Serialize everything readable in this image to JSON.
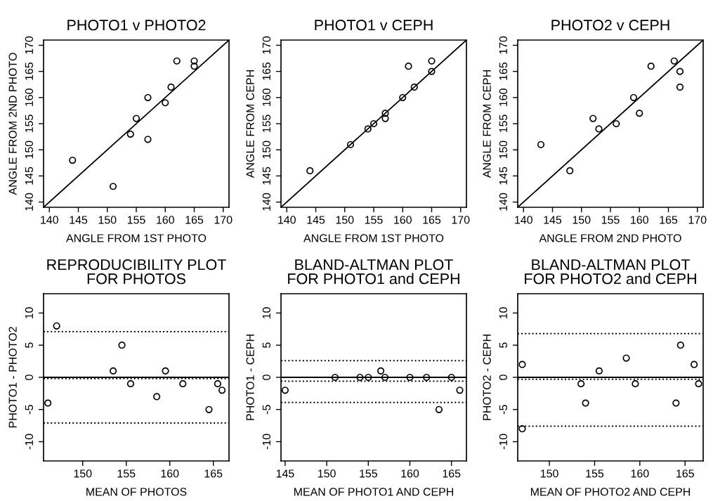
{
  "chart_data": [
    {
      "type": "scatter",
      "title": "PHOTO1 v PHOTO2",
      "xlabel": "ANGLE FROM 1ST PHOTO",
      "ylabel": "ANGLE FROM 2ND PHOTO",
      "xlim": [
        139,
        171
      ],
      "ylim": [
        139,
        171
      ],
      "xticks": [
        140,
        145,
        150,
        155,
        160,
        165,
        170
      ],
      "yticks": [
        140,
        145,
        150,
        155,
        160,
        165,
        170
      ],
      "series": [
        {
          "marker": "circle",
          "color": "#000000",
          "x": [
            144,
            151,
            154,
            155,
            157,
            157,
            160,
            161,
            162,
            165,
            165
          ],
          "values": [
            148,
            143,
            153,
            156,
            160,
            152,
            159,
            162,
            167,
            167,
            166
          ]
        },
        {
          "type": "line",
          "marker": "none",
          "color": "#000000",
          "x": [
            139,
            171
          ],
          "values": [
            139,
            171
          ]
        }
      ]
    },
    {
      "type": "scatter",
      "title": "PHOTO1 v CEPH",
      "xlabel": "ANGLE FROM 1ST PHOTO",
      "ylabel": "ANGLE FROM CEPH",
      "xlim": [
        139,
        171
      ],
      "ylim": [
        139,
        171
      ],
      "xticks": [
        140,
        145,
        150,
        155,
        160,
        165,
        170
      ],
      "yticks": [
        140,
        145,
        150,
        155,
        160,
        165,
        170
      ],
      "series": [
        {
          "marker": "circle",
          "color": "#000000",
          "x": [
            144,
            151,
            154,
            155,
            157,
            157,
            160,
            161,
            162,
            165,
            165
          ],
          "values": [
            146,
            151,
            154,
            155,
            157,
            156,
            160,
            166,
            162,
            167,
            165
          ]
        },
        {
          "type": "line",
          "marker": "none",
          "color": "#000000",
          "x": [
            139,
            171
          ],
          "values": [
            139,
            171
          ]
        }
      ]
    },
    {
      "type": "scatter",
      "title": "PHOTO2 v CEPH",
      "xlabel": "ANGLE FROM 2ND PHOTO",
      "ylabel": "ANGLE FROM CEPH",
      "xlim": [
        139,
        171
      ],
      "ylim": [
        139,
        171
      ],
      "xticks": [
        140,
        145,
        150,
        155,
        160,
        165,
        170
      ],
      "yticks": [
        140,
        145,
        150,
        155,
        160,
        165,
        170
      ],
      "series": [
        {
          "marker": "circle",
          "color": "#000000",
          "x": [
            143,
            148,
            152,
            153,
            156,
            159,
            160,
            162,
            166,
            167,
            167
          ],
          "values": [
            151,
            146,
            156,
            154,
            155,
            160,
            157,
            166,
            167,
            165,
            162
          ]
        },
        {
          "type": "line",
          "marker": "none",
          "color": "#000000",
          "x": [
            139,
            171
          ],
          "values": [
            139,
            171
          ]
        }
      ]
    },
    {
      "type": "scatter",
      "title": "REPRODUCIBILITY PLOT\nFOR PHOTOS",
      "xlabel": "MEAN OF PHOTOS",
      "ylabel": "PHOTO1 - PHOTO2",
      "xlim": [
        145.5,
        166.8
      ],
      "ylim": [
        -13,
        13
      ],
      "xticks": [
        150,
        155,
        160,
        165
      ],
      "yticks": [
        -10,
        -5,
        0,
        5,
        10
      ],
      "series": [
        {
          "marker": "circle",
          "color": "#000000",
          "x": [
            146,
            147,
            153.5,
            154.5,
            155.5,
            158.5,
            159.5,
            161.5,
            164.5,
            165.5,
            166
          ],
          "values": [
            -4,
            8,
            1,
            5,
            -1,
            -3,
            1,
            -1,
            -5,
            -1,
            -2
          ]
        }
      ],
      "ref_lines": [
        {
          "axis": "y",
          "value": 0,
          "line_style": "solid",
          "color": "#000000"
        },
        {
          "axis": "y",
          "value": -0.2,
          "line_style": "dotted",
          "color": "#000000"
        },
        {
          "axis": "y",
          "value": 7.1,
          "line_style": "dotted",
          "color": "#000000"
        },
        {
          "axis": "y",
          "value": -7.1,
          "line_style": "dotted",
          "color": "#000000"
        }
      ]
    },
    {
      "type": "scatter",
      "title": "BLAND-ALTMAN PLOT\nFOR PHOTO1 and CEPH",
      "xlabel": "MEAN OF PHOTO1 AND CEPH",
      "ylabel": "PHOTO1 - CEPH",
      "xlim": [
        144.5,
        166.8
      ],
      "ylim": [
        -13,
        13
      ],
      "xticks": [
        145,
        150,
        155,
        160,
        165
      ],
      "yticks": [
        -10,
        -5,
        0,
        5,
        10
      ],
      "series": [
        {
          "marker": "circle",
          "color": "#000000",
          "x": [
            145,
            151,
            154,
            155,
            156.5,
            157,
            160,
            162,
            165,
            163.5,
            166
          ],
          "values": [
            -2,
            0,
            0,
            0,
            1,
            0,
            0,
            0,
            0,
            -5,
            -2
          ]
        }
      ],
      "ref_lines": [
        {
          "axis": "y",
          "value": 0,
          "line_style": "solid",
          "color": "#000000"
        },
        {
          "axis": "y",
          "value": -0.6,
          "line_style": "dotted",
          "color": "#000000"
        },
        {
          "axis": "y",
          "value": 2.6,
          "line_style": "dotted",
          "color": "#000000"
        },
        {
          "axis": "y",
          "value": -3.9,
          "line_style": "dotted",
          "color": "#000000"
        }
      ]
    },
    {
      "type": "scatter",
      "title": "BLAND-ALTMAN PLOT\nFOR PHOTO2 and CEPH",
      "xlabel": "MEAN OF PHOTO2 AND CEPH",
      "ylabel": "PHOTO2 - CEPH",
      "xlim": [
        146.5,
        167
      ],
      "ylim": [
        -13,
        13
      ],
      "xticks": [
        150,
        155,
        160,
        165
      ],
      "yticks": [
        -10,
        -5,
        0,
        5,
        10
      ],
      "series": [
        {
          "marker": "circle",
          "color": "#000000",
          "x": [
            147,
            147,
            153.5,
            154,
            155.5,
            158.5,
            159.5,
            164,
            164.5,
            166,
            166.5
          ],
          "values": [
            2,
            -8,
            -1,
            -4,
            1,
            3,
            -1,
            -4,
            5,
            2,
            -1
          ]
        }
      ],
      "ref_lines": [
        {
          "axis": "y",
          "value": 0,
          "line_style": "solid",
          "color": "#000000"
        },
        {
          "axis": "y",
          "value": -0.3,
          "line_style": "dotted",
          "color": "#000000"
        },
        {
          "axis": "y",
          "value": 6.8,
          "line_style": "dotted",
          "color": "#000000"
        },
        {
          "axis": "y",
          "value": -7.6,
          "line_style": "dotted",
          "color": "#000000"
        }
      ]
    }
  ]
}
